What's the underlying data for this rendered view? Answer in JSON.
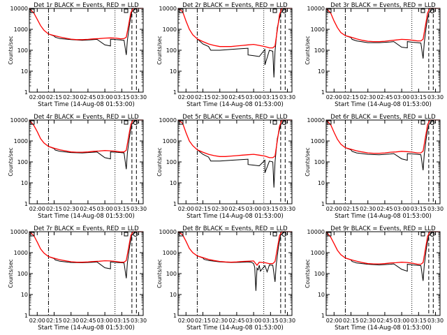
{
  "page": {
    "background": "#ffffff"
  },
  "colors": {
    "events": "#000000",
    "lld": "#ff0000",
    "axes": "#000000"
  },
  "shared_axes": {
    "xlabel": "Start Time (14-Aug-08 01:53:00)",
    "ylabel": "Counts/sec",
    "xticks": [
      "02:00",
      "02:15",
      "02:30",
      "02:45",
      "03:00",
      "03:15",
      "03:30"
    ],
    "x_range": [
      "01:53",
      "03:34"
    ],
    "y_scale": "log",
    "yticks": [
      "1",
      "10",
      "100",
      "1000",
      "10000"
    ],
    "ylim": [
      1,
      10000
    ]
  },
  "legend_markers": [
    "S",
    "O"
  ],
  "vlines_common": {
    "dashdot": [
      "02:10"
    ],
    "dotted": [
      "03:09"
    ],
    "dashed": [
      "03:24",
      "03:28"
    ]
  },
  "chart_data": [
    {
      "type": "line",
      "title": "Det 1r BLACK = Events, RED = LLD",
      "red_x": [
        "01:53",
        "01:57",
        "02:00",
        "02:03",
        "02:06",
        "02:10",
        "02:15",
        "02:20",
        "02:25",
        "02:30",
        "02:35",
        "02:40",
        "02:45",
        "02:50",
        "02:55",
        "03:00",
        "03:05",
        "03:10",
        "03:14",
        "03:17",
        "03:19",
        "03:21",
        "03:23",
        "03:25",
        "03:28",
        "03:34"
      ],
      "red_y": [
        10000,
        6000,
        3000,
        1500,
        900,
        600,
        500,
        430,
        380,
        340,
        320,
        320,
        330,
        350,
        360,
        380,
        390,
        380,
        350,
        360,
        420,
        1500,
        6000,
        10000,
        10000,
        10000
      ],
      "black_x": [
        "02:10",
        "02:15",
        "02:16",
        "02:20",
        "02:30",
        "02:40",
        "02:50",
        "02:53",
        "03:00",
        "03:05",
        "03:05",
        "03:08",
        "03:10",
        "03:14",
        "03:17",
        "03:19",
        "03:20",
        "03:22",
        "03:24",
        "03:28"
      ],
      "black_y": [
        600,
        480,
        420,
        360,
        320,
        300,
        320,
        330,
        180,
        160,
        330,
        330,
        320,
        310,
        300,
        60,
        300,
        1800,
        7000,
        10000
      ]
    },
    {
      "type": "line",
      "title": "Det 2r BLACK = Events, RED = LLD",
      "red_x": [
        "01:53",
        "01:57",
        "02:00",
        "02:03",
        "02:06",
        "02:10",
        "02:15",
        "02:20",
        "02:25",
        "02:30",
        "02:35",
        "02:40",
        "02:45",
        "02:50",
        "02:55",
        "03:00",
        "03:05",
        "03:10",
        "03:14",
        "03:17",
        "03:19",
        "03:21",
        "03:23",
        "03:25",
        "03:28",
        "03:34"
      ],
      "red_y": [
        10000,
        7000,
        2500,
        1000,
        550,
        350,
        260,
        200,
        170,
        150,
        150,
        150,
        160,
        170,
        180,
        190,
        170,
        150,
        130,
        130,
        160,
        900,
        5000,
        10000,
        10000,
        10000
      ],
      "black_x": [
        "02:10",
        "02:15",
        "02:20",
        "02:22",
        "02:30",
        "02:40",
        "02:50",
        "02:55",
        "02:55",
        "03:00",
        "03:05",
        "03:10",
        "03:10",
        "03:14",
        "03:17",
        "03:18",
        "03:19",
        "03:21",
        "03:24",
        "03:28"
      ],
      "black_y": [
        350,
        200,
        150,
        100,
        100,
        110,
        120,
        125,
        60,
        55,
        50,
        110,
        20,
        100,
        90,
        5,
        90,
        1200,
        6000,
        10000
      ]
    },
    {
      "type": "line",
      "title": "Det 3r BLACK = Events, RED = LLD",
      "red_x": [
        "01:53",
        "01:57",
        "02:00",
        "02:03",
        "02:06",
        "02:10",
        "02:15",
        "02:20",
        "02:25",
        "02:30",
        "02:35",
        "02:40",
        "02:45",
        "02:50",
        "02:55",
        "03:00",
        "03:05",
        "03:10",
        "03:14",
        "03:17",
        "03:19",
        "03:21",
        "03:23",
        "03:25",
        "03:28",
        "03:34"
      ],
      "red_y": [
        10000,
        6000,
        2500,
        1200,
        700,
        500,
        420,
        350,
        300,
        270,
        260,
        260,
        270,
        290,
        310,
        330,
        320,
        300,
        280,
        280,
        340,
        1400,
        6000,
        10000,
        10000,
        10000
      ],
      "black_x": [
        "02:10",
        "02:15",
        "02:16",
        "02:20",
        "02:30",
        "02:40",
        "02:50",
        "02:53",
        "03:00",
        "03:05",
        "03:05",
        "03:10",
        "03:14",
        "03:17",
        "03:19",
        "03:20",
        "03:22",
        "03:24",
        "03:28"
      ],
      "black_y": [
        500,
        400,
        330,
        280,
        230,
        230,
        250,
        260,
        140,
        130,
        260,
        240,
        230,
        220,
        40,
        220,
        1600,
        6000,
        10000
      ]
    },
    {
      "type": "line",
      "title": "Det 4r BLACK = Events, RED = LLD",
      "red_x": [
        "01:53",
        "01:57",
        "02:00",
        "02:03",
        "02:06",
        "02:10",
        "02:15",
        "02:20",
        "02:25",
        "02:30",
        "02:35",
        "02:40",
        "02:45",
        "02:50",
        "02:55",
        "03:00",
        "03:05",
        "03:10",
        "03:14",
        "03:17",
        "03:19",
        "03:21",
        "03:23",
        "03:25",
        "03:28",
        "03:34"
      ],
      "red_y": [
        10000,
        5500,
        2800,
        1300,
        800,
        550,
        450,
        380,
        340,
        300,
        290,
        290,
        300,
        320,
        330,
        350,
        340,
        320,
        300,
        300,
        360,
        1500,
        6000,
        10000,
        10000,
        10000
      ],
      "black_x": [
        "02:10",
        "02:15",
        "02:16",
        "02:20",
        "02:30",
        "02:40",
        "02:50",
        "02:53",
        "03:00",
        "03:05",
        "03:05",
        "03:10",
        "03:14",
        "03:17",
        "03:19",
        "03:20",
        "03:22",
        "03:24",
        "03:28"
      ],
      "black_y": [
        550,
        430,
        370,
        320,
        280,
        270,
        290,
        300,
        160,
        140,
        300,
        290,
        280,
        270,
        45,
        270,
        1700,
        6500,
        10000
      ]
    },
    {
      "type": "line",
      "title": "Det 5r BLACK = Events, RED = LLD",
      "red_x": [
        "01:53",
        "01:57",
        "02:00",
        "02:03",
        "02:06",
        "02:10",
        "02:15",
        "02:20",
        "02:25",
        "02:30",
        "02:35",
        "02:40",
        "02:45",
        "02:50",
        "02:55",
        "03:00",
        "03:05",
        "03:10",
        "03:14",
        "03:17",
        "03:19",
        "03:21",
        "03:23",
        "03:25",
        "03:28",
        "03:34"
      ],
      "red_y": [
        10000,
        7000,
        2500,
        1000,
        600,
        380,
        290,
        230,
        200,
        180,
        180,
        190,
        200,
        210,
        220,
        230,
        210,
        190,
        160,
        160,
        190,
        1000,
        5000,
        10000,
        10000,
        10000
      ],
      "black_x": [
        "02:10",
        "02:15",
        "02:20",
        "02:22",
        "02:30",
        "02:40",
        "02:50",
        "02:55",
        "02:55",
        "03:00",
        "03:05",
        "03:10",
        "03:10",
        "03:14",
        "03:17",
        "03:18",
        "03:19",
        "03:21",
        "03:24",
        "03:28"
      ],
      "black_y": [
        380,
        230,
        170,
        110,
        110,
        120,
        130,
        135,
        75,
        70,
        65,
        120,
        30,
        110,
        100,
        6,
        100,
        1300,
        6000,
        10000
      ]
    },
    {
      "type": "line",
      "title": "Det 6r BLACK = Events, RED = LLD",
      "red_x": [
        "01:53",
        "01:57",
        "02:00",
        "02:03",
        "02:06",
        "02:10",
        "02:15",
        "02:20",
        "02:25",
        "02:30",
        "02:35",
        "02:40",
        "02:45",
        "02:50",
        "02:55",
        "03:00",
        "03:05",
        "03:10",
        "03:14",
        "03:17",
        "03:19",
        "03:21",
        "03:23",
        "03:25",
        "03:28",
        "03:34"
      ],
      "red_y": [
        10000,
        6000,
        2600,
        1200,
        700,
        480,
        400,
        340,
        300,
        270,
        260,
        260,
        270,
        290,
        300,
        320,
        310,
        290,
        270,
        270,
        330,
        1400,
        6000,
        10000,
        10000,
        10000
      ],
      "black_x": [
        "02:10",
        "02:15",
        "02:16",
        "02:20",
        "02:30",
        "02:40",
        "02:50",
        "02:53",
        "03:00",
        "03:05",
        "03:05",
        "03:10",
        "03:14",
        "03:17",
        "03:19",
        "03:20",
        "03:22",
        "03:24",
        "03:28"
      ],
      "black_y": [
        480,
        380,
        320,
        270,
        230,
        220,
        240,
        250,
        140,
        120,
        250,
        240,
        230,
        220,
        40,
        220,
        1600,
        6000,
        10000
      ]
    },
    {
      "type": "line",
      "title": "Det 7r BLACK = Events, RED = LLD",
      "red_x": [
        "01:53",
        "01:57",
        "02:00",
        "02:03",
        "02:06",
        "02:10",
        "02:15",
        "02:20",
        "02:25",
        "02:30",
        "02:35",
        "02:40",
        "02:45",
        "02:50",
        "02:55",
        "03:00",
        "03:05",
        "03:10",
        "03:14",
        "03:17",
        "03:19",
        "03:21",
        "03:23",
        "03:25",
        "03:28",
        "03:34"
      ],
      "red_y": [
        10000,
        6500,
        3200,
        1500,
        950,
        650,
        540,
        460,
        410,
        370,
        350,
        350,
        360,
        380,
        390,
        410,
        400,
        380,
        350,
        350,
        420,
        1600,
        6500,
        10000,
        10000,
        10000
      ],
      "black_x": [
        "02:10",
        "02:15",
        "02:16",
        "02:20",
        "02:30",
        "02:40",
        "02:50",
        "02:53",
        "03:00",
        "03:05",
        "03:05",
        "03:10",
        "03:14",
        "03:17",
        "03:19",
        "03:20",
        "03:22",
        "03:24",
        "03:28"
      ],
      "black_y": [
        650,
        520,
        450,
        390,
        340,
        330,
        350,
        360,
        190,
        170,
        360,
        340,
        330,
        320,
        60,
        320,
        1900,
        7000,
        10000
      ]
    },
    {
      "type": "line",
      "title": "Det 8r BLACK = Events, RED = LLD",
      "red_x": [
        "01:53",
        "01:57",
        "02:00",
        "02:03",
        "02:06",
        "02:10",
        "02:15",
        "02:20",
        "02:25",
        "02:30",
        "02:35",
        "02:40",
        "02:45",
        "02:50",
        "02:55",
        "03:00",
        "03:03",
        "03:05",
        "03:10",
        "03:14",
        "03:17",
        "03:19",
        "03:21",
        "03:23",
        "03:25",
        "03:28",
        "03:34"
      ],
      "red_y": [
        10000,
        7000,
        3500,
        1600,
        1000,
        700,
        580,
        480,
        420,
        380,
        360,
        350,
        360,
        380,
        390,
        400,
        250,
        350,
        330,
        300,
        300,
        380,
        1500,
        6500,
        10000,
        10000,
        10000
      ],
      "black_x": [
        "02:10",
        "02:15",
        "02:16",
        "02:20",
        "02:30",
        "02:40",
        "02:50",
        "02:55",
        "02:58",
        "03:00",
        "03:01",
        "03:02",
        "03:03",
        "03:04",
        "03:05",
        "03:06",
        "03:10",
        "03:12",
        "03:14",
        "03:17",
        "03:19",
        "03:20",
        "03:22",
        "03:24",
        "03:28"
      ],
      "black_y": [
        700,
        560,
        480,
        420,
        360,
        340,
        350,
        360,
        350,
        300,
        200,
        15,
        180,
        150,
        250,
        130,
        240,
        120,
        260,
        250,
        40,
        250,
        1800,
        7000,
        10000
      ]
    },
    {
      "type": "line",
      "title": "Det 9r BLACK = Events, RED = LLD",
      "red_x": [
        "01:53",
        "01:57",
        "02:00",
        "02:03",
        "02:06",
        "02:10",
        "02:15",
        "02:20",
        "02:25",
        "02:30",
        "02:35",
        "02:40",
        "02:45",
        "02:50",
        "02:55",
        "03:00",
        "03:05",
        "03:10",
        "03:14",
        "03:17",
        "03:19",
        "03:21",
        "03:23",
        "03:25",
        "03:28",
        "03:34"
      ],
      "red_y": [
        10000,
        5500,
        2700,
        1300,
        800,
        560,
        460,
        390,
        340,
        300,
        290,
        290,
        300,
        320,
        330,
        350,
        340,
        310,
        280,
        280,
        340,
        1400,
        6000,
        10000,
        10000,
        10000
      ],
      "black_x": [
        "02:10",
        "02:15",
        "02:16",
        "02:20",
        "02:30",
        "02:40",
        "02:50",
        "02:53",
        "03:00",
        "03:05",
        "03:05",
        "03:10",
        "03:14",
        "03:17",
        "03:19",
        "03:20",
        "03:22",
        "03:24",
        "03:28"
      ],
      "black_y": [
        560,
        450,
        380,
        320,
        280,
        260,
        280,
        290,
        160,
        130,
        280,
        260,
        250,
        240,
        45,
        240,
        1700,
        6500,
        10000
      ]
    }
  ]
}
